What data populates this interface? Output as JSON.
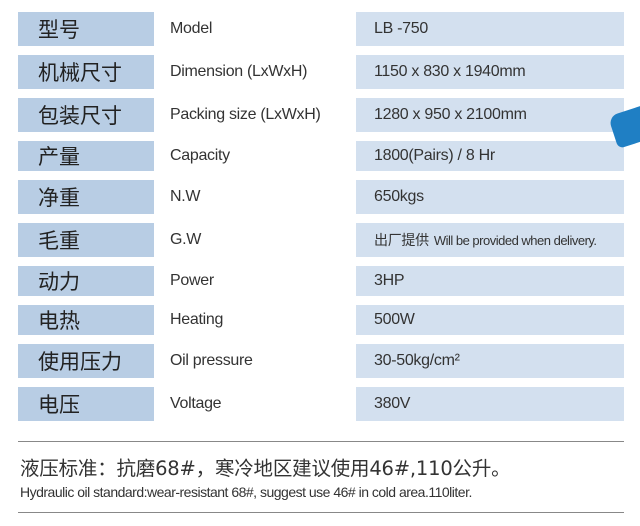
{
  "specs": [
    {
      "cn": "型号",
      "en": "Model",
      "value": "LB -750"
    },
    {
      "cn": "机械尺寸",
      "en": "Dimension (LxWxH)",
      "value": "1150 x 830 x 1940mm"
    },
    {
      "cn": "包装尺寸",
      "en": "Packing size (LxWxH)",
      "value": "1280 x 950 x 2100mm"
    },
    {
      "cn": "产量",
      "en": "Capacity",
      "value": "1800(Pairs) / 8 Hr"
    },
    {
      "cn": "净重",
      "en": "N.W",
      "value": "650kgs"
    },
    {
      "cn": "毛重",
      "en": "G.W",
      "value_cn": "出厂提供",
      "value": "Will be provided when delivery."
    },
    {
      "cn": "动力",
      "en": "Power",
      "value": "3HP"
    },
    {
      "cn": "电热",
      "en": "Heating",
      "value": "500W"
    },
    {
      "cn": "使用压力",
      "en": "Oil pressure",
      "value": "30-50kg/cm²"
    },
    {
      "cn": "电压",
      "en": "Voltage",
      "value": "380V"
    }
  ],
  "note": {
    "cn": "液压标准：抗磨68#，寒冷地区建议使用46#,110公升。",
    "en": "Hydraulic oil standard:wear-resistant 68#, suggest use 46# in cold area.110liter."
  }
}
